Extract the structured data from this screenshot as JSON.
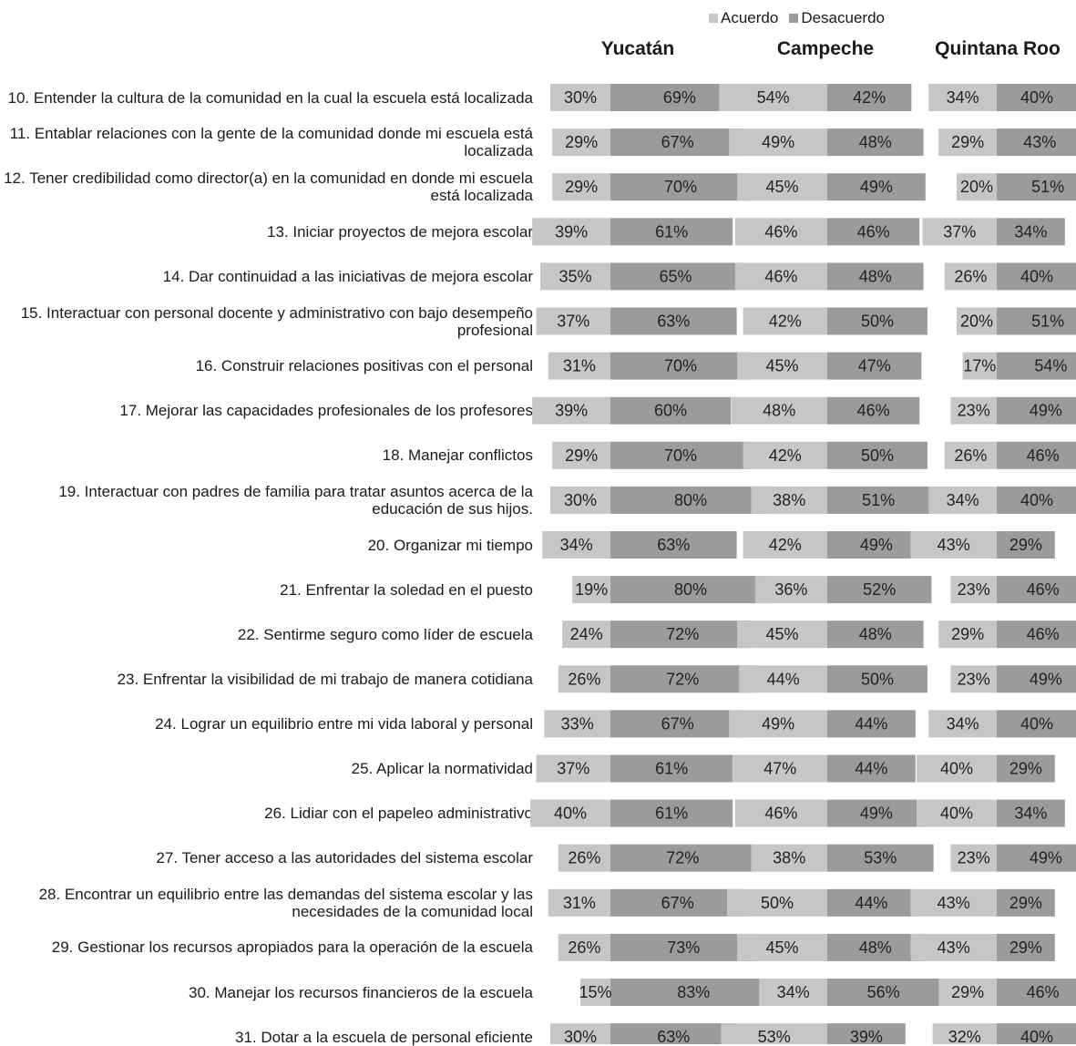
{
  "colors": {
    "acuerdo": "#c6c6c6",
    "desacuerdo": "#9b9b9b"
  },
  "chart_data": {
    "type": "bar",
    "orientation": "horizontal",
    "stacked": "diverging",
    "legend": {
      "position": "top",
      "entries": [
        "Acuerdo",
        "Desacuerdo"
      ]
    },
    "series_names": [
      "Acuerdo",
      "Desacuerdo"
    ],
    "categories": [
      "10. Entender la cultura de la comunidad en la cual la escuela está localizada",
      "11. Entablar relaciones con la gente de la comunidad donde mi escuela está localizada",
      "12. Tener credibilidad como director(a) en la comunidad en donde mi escuela está localizada",
      "13. Iniciar proyectos de mejora escolar",
      "14. Dar continuidad a las iniciativas de mejora escolar",
      "15. Interactuar con personal docente y administrativo con bajo desempeño profesional",
      "16. Construir relaciones positivas con el personal",
      "17. Mejorar las capacidades profesionales de los profesores",
      "18. Manejar conflictos",
      "19. Interactuar con padres de familia para tratar asuntos acerca de la educación de sus hijos.",
      "20. Organizar mi tiempo",
      "21. Enfrentar la soledad en el puesto",
      "22. Sentirme seguro como líder de escuela",
      "23. Enfrentar la visibilidad de mi trabajo de manera cotidiana",
      "24. Lograr un equilibrio entre mi vida laboral y personal",
      "25. Aplicar la normatividad",
      "26. Lidiar con el papeleo administrativo",
      "27. Tener acceso a las autoridades del sistema escolar",
      "28. Encontrar un equilibrio entre las demandas del sistema escolar y las necesidades de la comunidad local",
      "29. Gestionar los recursos apropiados para la operación de la escuela",
      "30. Manejar los recursos financieros de la escuela",
      "31. Dotar a la escuela de personal eficiente"
    ],
    "panels": [
      {
        "title": "Yucatán",
        "acuerdo": [
          30,
          29,
          29,
          39,
          35,
          37,
          31,
          39,
          29,
          30,
          34,
          19,
          24,
          26,
          33,
          37,
          40,
          26,
          31,
          26,
          15,
          30
        ],
        "desacuerdo": [
          69,
          67,
          70,
          61,
          65,
          63,
          70,
          60,
          70,
          80,
          63,
          80,
          72,
          72,
          67,
          61,
          61,
          72,
          67,
          73,
          83,
          63
        ]
      },
      {
        "title": "Campeche",
        "acuerdo": [
          54,
          49,
          45,
          46,
          46,
          42,
          45,
          48,
          42,
          38,
          42,
          36,
          45,
          44,
          49,
          47,
          46,
          38,
          50,
          45,
          34,
          53
        ],
        "desacuerdo": [
          42,
          48,
          49,
          46,
          48,
          50,
          47,
          46,
          50,
          51,
          49,
          52,
          48,
          50,
          44,
          44,
          49,
          53,
          44,
          48,
          56,
          39
        ]
      },
      {
        "title": "Quintana Roo",
        "acuerdo": [
          34,
          29,
          20,
          37,
          26,
          20,
          17,
          23,
          26,
          34,
          43,
          23,
          29,
          23,
          34,
          40,
          40,
          23,
          43,
          43,
          29,
          32
        ],
        "desacuerdo": [
          40,
          43,
          51,
          34,
          40,
          51,
          54,
          49,
          46,
          40,
          29,
          46,
          46,
          49,
          40,
          29,
          34,
          49,
          29,
          29,
          46,
          40
        ]
      }
    ]
  }
}
